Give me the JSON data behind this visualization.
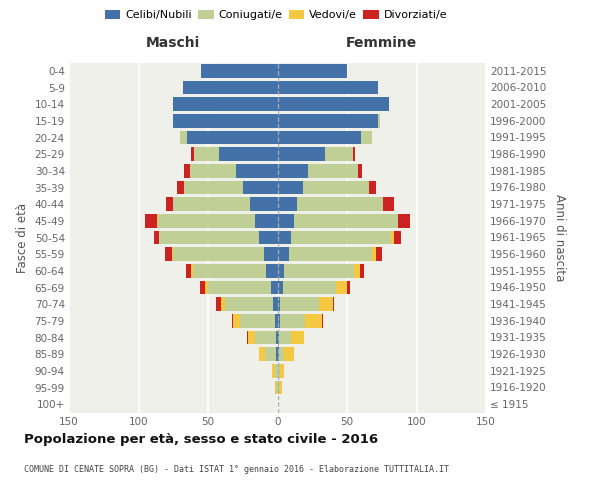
{
  "age_groups": [
    "100+",
    "95-99",
    "90-94",
    "85-89",
    "80-84",
    "75-79",
    "70-74",
    "65-69",
    "60-64",
    "55-59",
    "50-54",
    "45-49",
    "40-44",
    "35-39",
    "30-34",
    "25-29",
    "20-24",
    "15-19",
    "10-14",
    "5-9",
    "0-4"
  ],
  "birth_years": [
    "≤ 1915",
    "1916-1920",
    "1921-1925",
    "1926-1930",
    "1931-1935",
    "1936-1940",
    "1941-1945",
    "1946-1950",
    "1951-1955",
    "1956-1960",
    "1961-1965",
    "1966-1970",
    "1971-1975",
    "1976-1980",
    "1981-1985",
    "1986-1990",
    "1991-1995",
    "1996-2000",
    "2001-2005",
    "2006-2010",
    "2011-2015"
  ],
  "male_celibi": [
    0,
    0,
    0,
    1,
    1,
    2,
    3,
    5,
    8,
    10,
    13,
    16,
    20,
    25,
    30,
    42,
    65,
    75,
    75,
    68,
    55
  ],
  "male_coniugati": [
    0,
    1,
    2,
    8,
    15,
    25,
    35,
    45,
    53,
    65,
    72,
    70,
    55,
    42,
    33,
    18,
    5,
    0,
    0,
    0,
    0
  ],
  "male_vedovi": [
    0,
    1,
    2,
    4,
    5,
    5,
    3,
    2,
    1,
    1,
    0,
    1,
    0,
    0,
    0,
    0,
    0,
    0,
    0,
    0,
    0
  ],
  "male_divorziati": [
    0,
    0,
    0,
    0,
    1,
    1,
    3,
    4,
    4,
    5,
    4,
    8,
    5,
    5,
    4,
    2,
    0,
    0,
    0,
    0,
    0
  ],
  "female_nubili": [
    0,
    0,
    0,
    1,
    1,
    2,
    2,
    4,
    5,
    8,
    10,
    12,
    14,
    18,
    22,
    34,
    60,
    72,
    80,
    72,
    50
  ],
  "female_coniugate": [
    0,
    1,
    2,
    4,
    9,
    18,
    28,
    38,
    50,
    60,
    72,
    75,
    62,
    48,
    36,
    20,
    8,
    2,
    0,
    0,
    0
  ],
  "female_vedove": [
    0,
    2,
    3,
    7,
    9,
    12,
    10,
    8,
    4,
    3,
    2,
    0,
    0,
    0,
    0,
    0,
    0,
    0,
    0,
    0,
    0
  ],
  "female_divorziate": [
    0,
    0,
    0,
    0,
    0,
    1,
    1,
    2,
    3,
    4,
    5,
    8,
    8,
    5,
    3,
    2,
    0,
    0,
    0,
    0,
    0
  ],
  "color_celibi": "#4472a8",
  "color_coniugati": "#bfcf96",
  "color_vedovi": "#f5c842",
  "color_divorziati": "#cc2222",
  "xlim": 150,
  "title": "Popolazione per età, sesso e stato civile - 2016",
  "subtitle": "COMUNE DI CENATE SOPRA (BG) - Dati ISTAT 1° gennaio 2016 - Elaborazione TUTTITALIA.IT",
  "ylabel_left": "Fasce di età",
  "ylabel_right": "Anni di nascita",
  "label_maschi": "Maschi",
  "label_femmine": "Femmine",
  "legend_celibi": "Celibi/Nubili",
  "legend_coniugati": "Coniugati/e",
  "legend_vedovi": "Vedovi/e",
  "legend_divorziati": "Divorziati/e",
  "bg_color": "#f0f0eb"
}
